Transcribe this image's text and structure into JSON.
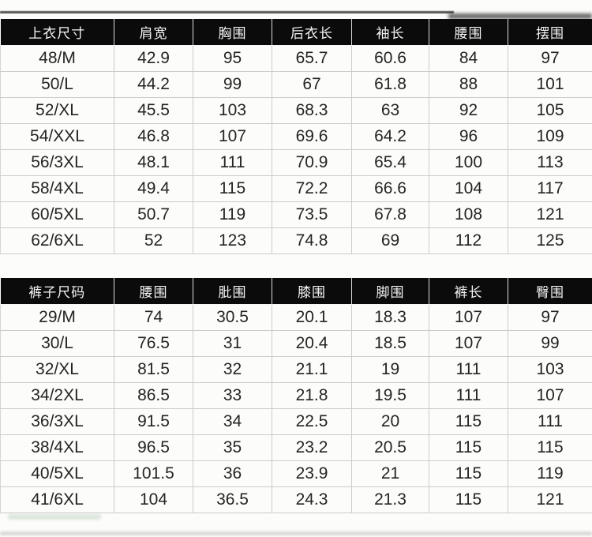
{
  "page": {
    "kind": "clothing-size-chart",
    "background": "#fcfcfa"
  },
  "colors": {
    "header_bg": "#0b0b0b",
    "header_text": "#f4f4f4",
    "cell_text": "#242424",
    "grid_line": "#cccccc"
  },
  "tables": [
    {
      "name": "tops-size-table",
      "title": "上衣尺寸",
      "headers": [
        "上衣尺寸",
        "肩宽",
        "胸围",
        "后衣长",
        "袖长",
        "腰围",
        "摆围"
      ],
      "rows": [
        [
          "48/M",
          "42.9",
          "95",
          "65.7",
          "60.6",
          "84",
          "97"
        ],
        [
          "50/L",
          "44.2",
          "99",
          "67",
          "61.8",
          "88",
          "101"
        ],
        [
          "52/XL",
          "45.5",
          "103",
          "68.3",
          "63",
          "92",
          "105"
        ],
        [
          "54/XXL",
          "46.8",
          "107",
          "69.6",
          "64.2",
          "96",
          "109"
        ],
        [
          "56/3XL",
          "48.1",
          "111",
          "70.9",
          "65.4",
          "100",
          "113"
        ],
        [
          "58/4XL",
          "49.4",
          "115",
          "72.2",
          "66.6",
          "104",
          "117"
        ],
        [
          "60/5XL",
          "50.7",
          "119",
          "73.5",
          "67.8",
          "108",
          "121"
        ],
        [
          "62/6XL",
          "52",
          "123",
          "74.8",
          "69",
          "112",
          "125"
        ]
      ]
    },
    {
      "name": "pants-size-table",
      "title": "裤子尺码",
      "headers": [
        "裤子尺码",
        "腰围",
        "肶围",
        "膝围",
        "脚围",
        "裤长",
        "臀围"
      ],
      "rows": [
        [
          "29/M",
          "74",
          "30.5",
          "20.1",
          "18.3",
          "107",
          "97"
        ],
        [
          "30/L",
          "76.5",
          "31",
          "20.4",
          "18.5",
          "107",
          "99"
        ],
        [
          "32/XL",
          "81.5",
          "32",
          "21.1",
          "19",
          "111",
          "103"
        ],
        [
          "34/2XL",
          "86.5",
          "33",
          "21.8",
          "19.5",
          "111",
          "107"
        ],
        [
          "36/3XL",
          "91.5",
          "34",
          "22.5",
          "20",
          "115",
          "111"
        ],
        [
          "38/4XL",
          "96.5",
          "35",
          "23.2",
          "20.5",
          "115",
          "115"
        ],
        [
          "40/5XL",
          "101.5",
          "36",
          "23.9",
          "21",
          "115",
          "119"
        ],
        [
          "41/6XL",
          "104",
          "36.5",
          "24.3",
          "21.3",
          "115",
          "121"
        ]
      ]
    }
  ]
}
